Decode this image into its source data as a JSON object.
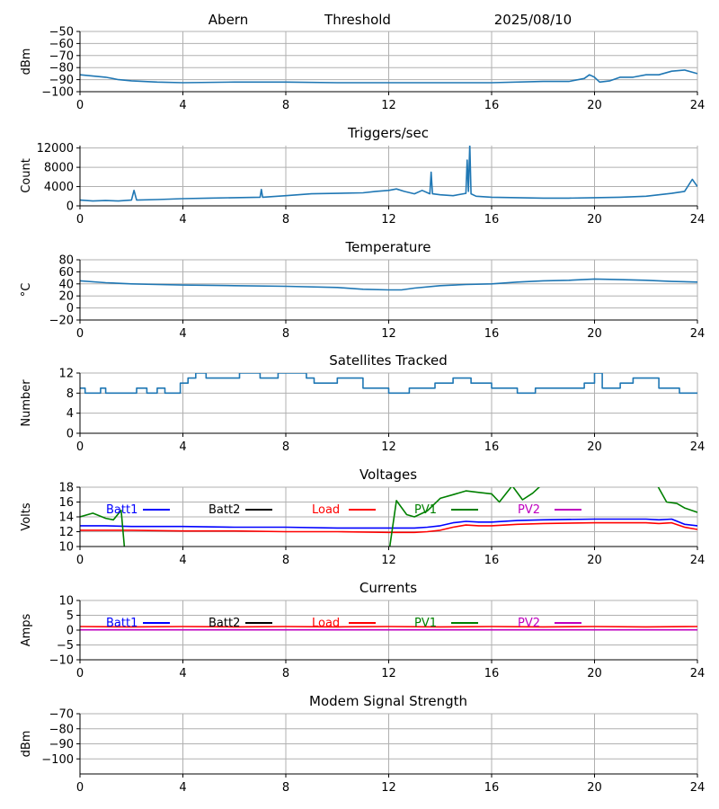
{
  "header": {
    "station": "Abern",
    "mode": "Threshold",
    "date": "2025/08/10"
  },
  "colors": {
    "trace": "#1f77b4",
    "grid": "#b0b0b0",
    "batt1": "#0000ff",
    "batt2": "#000000",
    "load": "#ff0000",
    "pv1": "#008000",
    "pv2": "#bf00bf"
  },
  "legend": [
    "Batt1",
    "Batt2",
    "Load",
    "PV1",
    "PV2"
  ],
  "chart_data": [
    {
      "id": "threshold",
      "type": "line",
      "title": "",
      "ylabel": "dBm",
      "xlim": [
        0,
        24
      ],
      "ylim": [
        -100,
        -50
      ],
      "xticks": [
        0,
        4,
        8,
        12,
        16,
        20,
        24
      ],
      "yticks": [
        -100,
        -90,
        -80,
        -70,
        -60,
        -50
      ],
      "ytick_labels": [
        "−100",
        "−90",
        "−80",
        "−70",
        "−60",
        "−50"
      ],
      "grid": true,
      "series": [
        {
          "color": "#1f77b4",
          "x": [
            0,
            0.5,
            1,
            1.5,
            2,
            3,
            4,
            6,
            8,
            10,
            12,
            14,
            16,
            18,
            19,
            19.6,
            19.8,
            20,
            20.2,
            20.6,
            21,
            21.5,
            22,
            22.5,
            23,
            23.5,
            24
          ],
          "y": [
            -86,
            -87,
            -88,
            -90,
            -91,
            -92,
            -92.5,
            -92,
            -92,
            -92.5,
            -92.5,
            -92.5,
            -92.5,
            -91.5,
            -91.5,
            -89,
            -86,
            -88,
            -92,
            -91,
            -88,
            -88,
            -86,
            -86,
            -83,
            -82,
            -85
          ]
        }
      ]
    },
    {
      "id": "triggers",
      "type": "line",
      "title": "Triggers/sec",
      "ylabel": "Count",
      "xlim": [
        0,
        24
      ],
      "ylim": [
        0,
        12500
      ],
      "xticks": [
        0,
        4,
        8,
        12,
        16,
        20,
        24
      ],
      "yticks": [
        0,
        4000,
        8000,
        12000
      ],
      "ytick_labels": [
        "0",
        "4000",
        "8000",
        "12000"
      ],
      "grid": true,
      "series": [
        {
          "color": "#1f77b4",
          "x": [
            0,
            0.5,
            1,
            1.5,
            2,
            2.1,
            2.2,
            3,
            4,
            5,
            6,
            7,
            7.05,
            7.1,
            8,
            9,
            10,
            11,
            11.5,
            12,
            12.3,
            12.6,
            13,
            13.3,
            13.6,
            13.65,
            13.7,
            14,
            14.5,
            15,
            15.05,
            15.1,
            15.15,
            15.2,
            15.4,
            16,
            17,
            18,
            19,
            20,
            21,
            22,
            22.5,
            23,
            23.5,
            23.8,
            24
          ],
          "y": [
            1200,
            1000,
            1100,
            1000,
            1200,
            3200,
            1200,
            1300,
            1500,
            1600,
            1700,
            1800,
            3400,
            1800,
            2100,
            2500,
            2600,
            2700,
            3000,
            3200,
            3500,
            3000,
            2500,
            3200,
            2500,
            7000,
            2500,
            2300,
            2100,
            2600,
            9500,
            3000,
            12800,
            2500,
            2000,
            1800,
            1700,
            1600,
            1600,
            1700,
            1800,
            2000,
            2300,
            2600,
            3000,
            5500,
            4000
          ]
        }
      ]
    },
    {
      "id": "temperature",
      "type": "line",
      "title": "Temperature",
      "ylabel": "°C",
      "xlim": [
        0,
        24
      ],
      "ylim": [
        -20,
        80
      ],
      "xticks": [
        0,
        4,
        8,
        12,
        16,
        20,
        24
      ],
      "yticks": [
        -20,
        0,
        20,
        40,
        60,
        80
      ],
      "ytick_labels": [
        "−20",
        "0",
        "20",
        "40",
        "60",
        "80"
      ],
      "grid": true,
      "series": [
        {
          "color": "#1f77b4",
          "x": [
            0,
            1,
            2,
            3,
            4,
            6,
            8,
            10,
            11,
            12,
            12.5,
            13,
            14,
            15,
            16,
            17,
            18,
            19,
            20,
            21,
            22,
            23,
            24
          ],
          "y": [
            45,
            42,
            40,
            39,
            38,
            37,
            36,
            34,
            31,
            30,
            30,
            33,
            37,
            39,
            40,
            43,
            45,
            46,
            48,
            47,
            46,
            44,
            43
          ]
        }
      ]
    },
    {
      "id": "satellites",
      "type": "line",
      "title": "Satellites Tracked",
      "ylabel": "Number",
      "xlim": [
        0,
        24
      ],
      "ylim": [
        0,
        12
      ],
      "xticks": [
        0,
        4,
        8,
        12,
        16,
        20,
        24
      ],
      "yticks": [
        0,
        4,
        8,
        12
      ],
      "ytick_labels": [
        "0",
        "4",
        "8",
        "12"
      ],
      "grid": true,
      "series": [
        {
          "color": "#1f77b4",
          "x": [
            0,
            0.2,
            0.2,
            0.8,
            0.8,
            1.0,
            1.0,
            2.2,
            2.2,
            2.6,
            2.6,
            3.0,
            3.0,
            3.3,
            3.3,
            3.9,
            3.9,
            4.2,
            4.2,
            4.5,
            4.5,
            4.9,
            4.9,
            5.1,
            5.1,
            6.2,
            6.2,
            7.0,
            7.0,
            7.7,
            7.7,
            8.2,
            8.2,
            8.8,
            8.8,
            9.1,
            9.1,
            10.0,
            10.0,
            11.0,
            11.0,
            12.0,
            12.0,
            12.8,
            12.8,
            13.0,
            13.0,
            13.8,
            13.8,
            14.5,
            14.5,
            15.2,
            15.2,
            16.0,
            16.0,
            17.0,
            17.0,
            17.7,
            17.7,
            19.0,
            19.0,
            19.6,
            19.6,
            20.0,
            20.0,
            20.3,
            20.3,
            21.0,
            21.0,
            21.5,
            21.5,
            22.5,
            22.5,
            23.3,
            23.3,
            24
          ],
          "y": [
            9,
            9,
            8,
            8,
            9,
            9,
            8,
            8,
            9,
            9,
            8,
            8,
            9,
            9,
            8,
            8,
            10,
            10,
            11,
            11,
            12,
            12,
            11,
            11,
            11,
            11,
            12,
            12,
            11,
            11,
            12,
            12,
            12,
            12,
            11,
            11,
            10,
            10,
            11,
            11,
            9,
            9,
            8,
            8,
            9,
            9,
            9,
            9,
            10,
            10,
            11,
            11,
            10,
            10,
            9,
            9,
            8,
            8,
            9,
            9,
            9,
            9,
            10,
            10,
            12,
            12,
            9,
            9,
            10,
            10,
            11,
            11,
            9,
            9,
            8,
            8
          ]
        }
      ]
    },
    {
      "id": "voltages",
      "type": "line",
      "title": "Voltages",
      "ylabel": "Volts",
      "xlim": [
        0,
        24
      ],
      "ylim": [
        10,
        18
      ],
      "xticks": [
        0,
        4,
        8,
        12,
        16,
        20,
        24
      ],
      "yticks": [
        10,
        12,
        14,
        16,
        18
      ],
      "ytick_labels": [
        "10",
        "12",
        "14",
        "16",
        "18"
      ],
      "grid": true,
      "legend": true,
      "series": [
        {
          "name": "Batt1",
          "color": "#0000ff",
          "x": [
            0,
            1,
            2,
            4,
            6,
            8,
            10,
            12,
            13,
            13.5,
            14,
            14.5,
            15,
            15.5,
            16,
            17,
            18,
            20,
            22,
            22.5,
            23,
            23.5,
            24
          ],
          "y": [
            12.8,
            12.8,
            12.7,
            12.7,
            12.6,
            12.6,
            12.5,
            12.5,
            12.5,
            12.6,
            12.8,
            13.2,
            13.4,
            13.3,
            13.3,
            13.5,
            13.6,
            13.7,
            13.7,
            13.6,
            13.7,
            13.0,
            12.8
          ]
        },
        {
          "name": "Load",
          "color": "#ff0000",
          "x": [
            0,
            1,
            2,
            4,
            6,
            8,
            10,
            12,
            13,
            13.5,
            14,
            14.5,
            15,
            15.5,
            16,
            17,
            18,
            20,
            22,
            22.5,
            23,
            23.5,
            24
          ],
          "y": [
            12.2,
            12.2,
            12.2,
            12.1,
            12.1,
            12.0,
            12.0,
            11.9,
            11.9,
            12.0,
            12.2,
            12.6,
            12.9,
            12.8,
            12.8,
            13.0,
            13.1,
            13.2,
            13.2,
            13.1,
            13.2,
            12.6,
            12.3
          ]
        },
        {
          "name": "PV1",
          "color": "#008000",
          "x": [
            0,
            0.5,
            1,
            1.3,
            1.6,
            1.75,
            12,
            12.3,
            12.7,
            13.0,
            13.5,
            14.0,
            14.5,
            15.0,
            15.5,
            16.0,
            16.3,
            16.8,
            17.2,
            17.6,
            18.0,
            22.4,
            22.8,
            23.2,
            23.5,
            24
          ],
          "y": [
            14.0,
            14.5,
            13.8,
            13.6,
            14.9,
            9.0,
            9.0,
            16.2,
            14.3,
            14.0,
            14.8,
            16.5,
            17.0,
            17.5,
            17.3,
            17.1,
            16.0,
            18.2,
            16.3,
            17.2,
            18.5,
            18.5,
            16.0,
            15.8,
            15.2,
            14.6
          ]
        }
      ]
    },
    {
      "id": "currents",
      "type": "line",
      "title": "Currents",
      "ylabel": "Amps",
      "xlim": [
        0,
        24
      ],
      "ylim": [
        -10,
        10
      ],
      "xticks": [
        0,
        4,
        8,
        12,
        16,
        20,
        24
      ],
      "yticks": [
        -10,
        -5,
        0,
        5,
        10
      ],
      "ytick_labels": [
        "−10",
        "−5",
        "0",
        "5",
        "10"
      ],
      "grid": true,
      "legend": true,
      "series": [
        {
          "name": "Load",
          "color": "#ff0000",
          "x": [
            0,
            2,
            4,
            6,
            8,
            10,
            12,
            14,
            16,
            18,
            20,
            22,
            24
          ],
          "y": [
            1.2,
            1.1,
            1.2,
            1.1,
            1.2,
            1.1,
            1.2,
            1.1,
            1.2,
            1.1,
            1.2,
            1.1,
            1.2
          ]
        },
        {
          "name": "PV2",
          "color": "#bf00bf",
          "x": [
            0,
            24
          ],
          "y": [
            0.1,
            0.1
          ]
        }
      ]
    },
    {
      "id": "modem",
      "type": "line",
      "title": "Modem Signal Strength",
      "ylabel": "dBm",
      "xlim": [
        0,
        24
      ],
      "ylim": [
        -110,
        -70
      ],
      "xticks": [
        0,
        4,
        8,
        12,
        16,
        20,
        24
      ],
      "yticks": [
        -100,
        -90,
        -80,
        -70
      ],
      "ytick_labels": [
        "−100",
        "−90",
        "−80",
        "−70"
      ],
      "grid": true,
      "series": []
    }
  ]
}
